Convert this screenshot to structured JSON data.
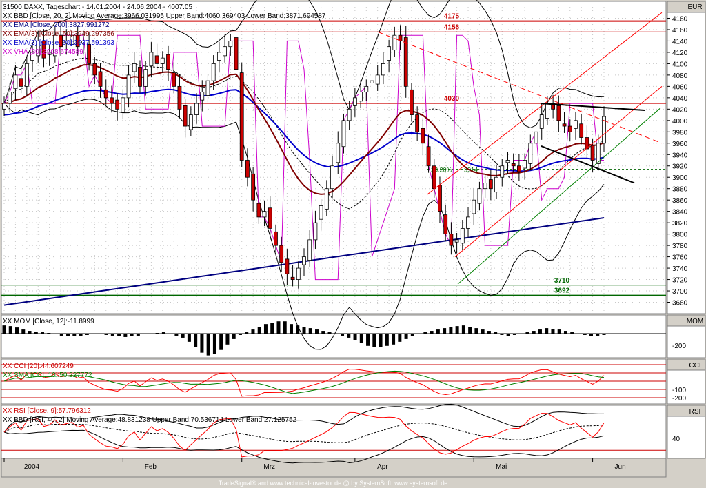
{
  "chart_data": [
    {
      "type": "candlestick",
      "header": "31500 DAXX, Tageschart - 14.01.2004 - 24.06.2004 - 4007.05",
      "currency": "EUR",
      "legend": [
        "XX BBD [Close, 20, 2] Moving Average:3966.031995 Upper Band:4060.369403 Lower Band:3871.694587",
        "XX EMA [Close, 200]:3827.991272",
        "XX EMA(3) [Close, 50]:3949.297356",
        "XX EMA(3) [Close, 90]:3937.591393",
        "XX VHA [30]:3908.674589"
      ],
      "legend_colors": [
        "#000000",
        "#000080",
        "#800000",
        "#0000cc",
        "#cc00cc"
      ],
      "ylim": [
        3660,
        4200
      ],
      "yticks": [
        3680,
        3700,
        3720,
        3740,
        3760,
        3780,
        3800,
        3820,
        3840,
        3860,
        3880,
        3900,
        3920,
        3940,
        3960,
        3980,
        4000,
        4020,
        4040,
        4060,
        4080,
        4100,
        4120,
        4140,
        4160,
        4180
      ],
      "xticks": [
        "2004",
        "Feb",
        "Mrz",
        "Apr",
        "Mai",
        "Jun"
      ],
      "xtick_index": [
        0,
        21,
        42,
        62,
        83,
        104
      ],
      "close": [
        4030,
        4050,
        4080,
        4060,
        4100,
        4120,
        4140,
        4110,
        4120,
        4150,
        4130,
        4140,
        4150,
        4130,
        4140,
        4100,
        4080,
        4060,
        4040,
        4030,
        4020,
        4040,
        4080,
        4100,
        4060,
        4090,
        4120,
        4100,
        4110,
        4090,
        4060,
        4020,
        3990,
        4010,
        4030,
        4050,
        4070,
        4100,
        4120,
        4130,
        4140,
        4090,
        3930,
        3900,
        3860,
        3830,
        3840,
        3810,
        3780,
        3750,
        3730,
        3720,
        3740,
        3760,
        3790,
        3820,
        3850,
        3880,
        3920,
        3960,
        4000,
        4020,
        4040,
        4050,
        4060,
        4070,
        4080,
        4100,
        4130,
        4150,
        4140,
        4060,
        4010,
        3980,
        3960,
        3920,
        3880,
        3840,
        3800,
        3780,
        3790,
        3810,
        3830,
        3860,
        3880,
        3890,
        3880,
        3900,
        3920,
        3930,
        3920,
        3910,
        3930,
        3960,
        3980,
        4010,
        4030,
        4020,
        4000,
        3990,
        3980,
        4000,
        3970,
        3950,
        3930,
        3960,
        4007
      ],
      "levels": [
        {
          "label": "4175",
          "value": 4175,
          "color": "#cc0000"
        },
        {
          "label": "4156",
          "value": 4156,
          "color": "#cc0000"
        },
        {
          "label": "4030",
          "value": 4030,
          "color": "#cc0000"
        },
        {
          "label": "3710",
          "value": 3710,
          "color": "#006600"
        },
        {
          "label": "3692",
          "value": 3692,
          "color": "#006600"
        }
      ],
      "fib_label": "38.20%",
      "fib_value": "3914"
    },
    {
      "type": "bar",
      "label": "XX MOM [Close, 12]:-11.8999",
      "panel_title": "MOM",
      "ytick": "-200",
      "values": [
        60,
        55,
        45,
        30,
        20,
        15,
        10,
        5,
        -5,
        -15,
        -20,
        -20,
        -15,
        -10,
        -5,
        -5,
        -10,
        -15,
        -20,
        -25,
        -20,
        -15,
        -5,
        0,
        5,
        10,
        -5,
        -15,
        -30,
        -60,
        -100,
        -140,
        -160,
        -150,
        -120,
        -80,
        -40,
        -10,
        10,
        30,
        50,
        70,
        80,
        90,
        90,
        70,
        60,
        50,
        40,
        30,
        20,
        10,
        0,
        -15,
        -30,
        -50,
        -70,
        -90,
        -100,
        -100,
        -90,
        -80,
        -60,
        -40,
        -20,
        0,
        10,
        20,
        30,
        40,
        50,
        55,
        60,
        50,
        40,
        30,
        20,
        10,
        -10,
        -20,
        -10,
        0,
        10,
        20,
        30,
        40,
        35,
        30,
        20,
        10,
        0,
        -10,
        -20,
        -15,
        -10
      ]
    },
    {
      "type": "line",
      "label1": "XX CCI [20]:44.607249",
      "label2": "XX SMA [CCI, 10]:50.227772",
      "panel_title": "CCI",
      "yticks": [
        "-100",
        "-200"
      ]
    },
    {
      "type": "line",
      "label1": "XX RSI [Close, 9]:57.796312",
      "label2": "XX BBD [RSI, 40, 2] Moving Average:48.831238 Upper Band:70.536714 Lower Band:27.125752",
      "panel_title": "RSI",
      "ytick": "40"
    }
  ],
  "footer": "TradeSignal® and www.technical-investor.de @ by SystemSoft, www.systemsoft.de"
}
